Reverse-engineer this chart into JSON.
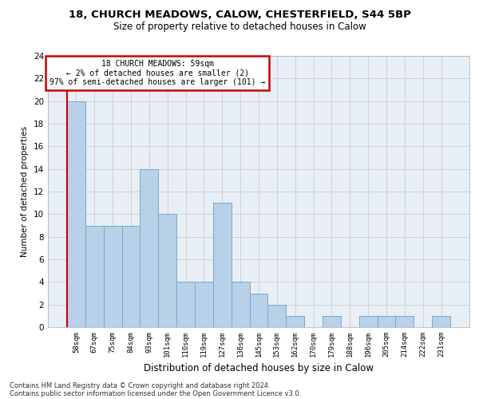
{
  "title1": "18, CHURCH MEADOWS, CALOW, CHESTERFIELD, S44 5BP",
  "title2": "Size of property relative to detached houses in Calow",
  "xlabel": "Distribution of detached houses by size in Calow",
  "ylabel": "Number of detached properties",
  "categories": [
    "58sqm",
    "67sqm",
    "75sqm",
    "84sqm",
    "93sqm",
    "101sqm",
    "110sqm",
    "119sqm",
    "127sqm",
    "136sqm",
    "145sqm",
    "153sqm",
    "162sqm",
    "170sqm",
    "179sqm",
    "188sqm",
    "196sqm",
    "205sqm",
    "214sqm",
    "222sqm",
    "231sqm"
  ],
  "values": [
    20,
    9,
    9,
    9,
    14,
    10,
    4,
    4,
    11,
    4,
    3,
    2,
    1,
    0,
    1,
    0,
    1,
    1,
    1,
    0,
    1
  ],
  "bar_color": "#b8d0e8",
  "bar_edge_color": "#7aaac8",
  "annotation_line1": "18 CHURCH MEADOWS: 59sqm",
  "annotation_line2": "← 2% of detached houses are smaller (2)",
  "annotation_line3": "97% of semi-detached houses are larger (101) →",
  "annotation_box_facecolor": "#ffffff",
  "annotation_box_edgecolor": "#cc0000",
  "ylim": [
    0,
    24
  ],
  "yticks": [
    0,
    2,
    4,
    6,
    8,
    10,
    12,
    14,
    16,
    18,
    20,
    22,
    24
  ],
  "grid_color": "#cccccc",
  "bg_color": "#e8eef5",
  "footer1": "Contains HM Land Registry data © Crown copyright and database right 2024.",
  "footer2": "Contains public sector information licensed under the Open Government Licence v3.0."
}
